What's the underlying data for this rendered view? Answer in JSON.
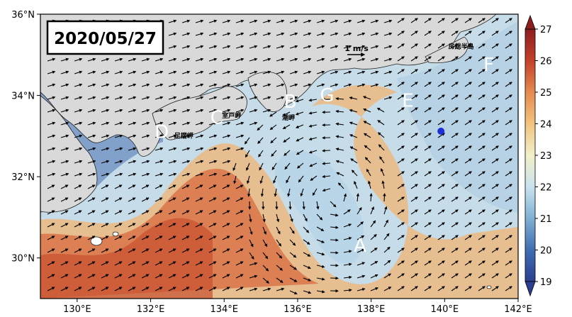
{
  "date": "2020/05/27",
  "reference_vector": {
    "label": "1 m/s"
  },
  "axes": {
    "lon_range": [
      129,
      142
    ],
    "lat_range": [
      29,
      36
    ],
    "lon_ticks": [
      {
        "value": 130,
        "label": "130°E"
      },
      {
        "value": 132,
        "label": "132°E"
      },
      {
        "value": 134,
        "label": "134°E"
      },
      {
        "value": 136,
        "label": "136°E"
      },
      {
        "value": 138,
        "label": "138°E"
      },
      {
        "value": 140,
        "label": "140°E"
      },
      {
        "value": 142,
        "label": "142°E"
      }
    ],
    "lat_ticks": [
      {
        "value": 30,
        "label": "30°N"
      },
      {
        "value": 32,
        "label": "32°N"
      },
      {
        "value": 34,
        "label": "34°N"
      },
      {
        "value": 36,
        "label": "36°N"
      }
    ]
  },
  "colorbar": {
    "range": [
      19,
      27
    ],
    "ticks": [
      {
        "value": 19,
        "label": "19"
      },
      {
        "value": 20,
        "label": "20"
      },
      {
        "value": 21,
        "label": "21"
      },
      {
        "value": 22,
        "label": "22"
      },
      {
        "value": 23,
        "label": "23"
      },
      {
        "value": 24,
        "label": "24"
      },
      {
        "value": 25,
        "label": "25"
      },
      {
        "value": 26,
        "label": "26"
      },
      {
        "value": 27,
        "label": "27"
      }
    ],
    "colors": [
      "#2c3e8f",
      "#3f6fb2",
      "#7fb0d3",
      "#c9e3ee",
      "#f3efc8",
      "#f2c47e",
      "#e58a4e",
      "#c3412b",
      "#8e1f20"
    ]
  },
  "site_labels": [
    {
      "id": "A",
      "lon": 137.7,
      "lat": 30.15
    },
    {
      "id": "B",
      "lon": 135.8,
      "lat": 33.7
    },
    {
      "id": "C",
      "lon": 133.8,
      "lat": 33.3
    },
    {
      "id": "D",
      "lon": 132.3,
      "lat": 32.95
    },
    {
      "id": "E",
      "lon": 139.0,
      "lat": 33.72
    },
    {
      "id": "F",
      "lon": 141.2,
      "lat": 34.6
    },
    {
      "id": "G",
      "lon": 136.8,
      "lat": 33.85
    }
  ],
  "place_names": [
    {
      "id": "muroto",
      "text": "室戸岬",
      "lon": 134.2,
      "lat": 33.45
    },
    {
      "id": "shionomisaki",
      "text": "潮岬",
      "lon": 135.75,
      "lat": 33.4
    },
    {
      "id": "ashizuri",
      "text": "足摺岬",
      "lon": 132.9,
      "lat": 32.95
    },
    {
      "id": "boso",
      "text": "房総半島",
      "lon": 140.45,
      "lat": 35.15
    }
  ],
  "marker": {
    "lon": 139.9,
    "lat": 33.12,
    "color": "#1e2fd6"
  }
}
